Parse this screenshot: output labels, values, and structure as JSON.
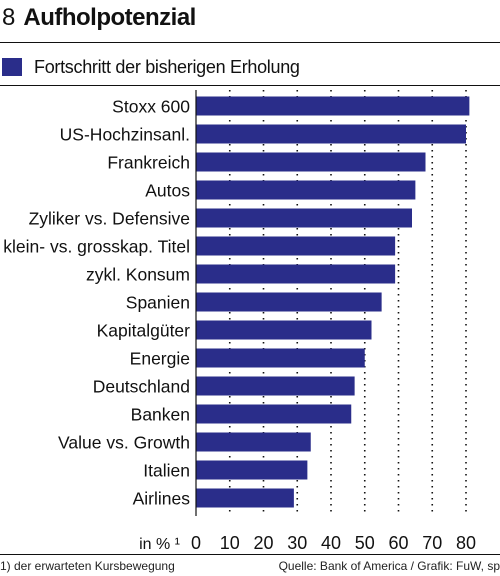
{
  "header": {
    "number": "8",
    "title": "Aufholpotenzial"
  },
  "legend": {
    "label": "Fortschritt der bisherigen Erholung"
  },
  "colors": {
    "bar": "#2a2d8a",
    "text": "#111111"
  },
  "chart_data": {
    "type": "bar",
    "orientation": "horizontal",
    "categories": [
      "Stoxx 600",
      "US-Hochzinsanl.",
      "Frankreich",
      "Autos",
      "Zyliker vs. Defensive",
      "klein- vs. grosskap. Titel",
      "zykl. Konsum",
      "Spanien",
      "Kapitalgüter",
      "Energie",
      "Deutschland",
      "Banken",
      "Value vs. Growth",
      "Italien",
      "Airlines"
    ],
    "series": [
      {
        "name": "Fortschritt der bisherigen Erholung",
        "values": [
          81,
          80,
          68,
          65,
          64,
          59,
          59,
          55,
          52,
          50,
          47,
          46,
          34,
          33,
          29
        ]
      }
    ],
    "xlabel": "in % ¹",
    "xlim": [
      0,
      80
    ],
    "xticks": [
      0,
      10,
      20,
      30,
      40,
      50,
      60,
      70,
      80
    ],
    "grid": true
  },
  "footer": {
    "note": "1) der erwarteten Kursbewegung",
    "source": "Quelle: Bank of America / Grafik: FuW, sp"
  }
}
